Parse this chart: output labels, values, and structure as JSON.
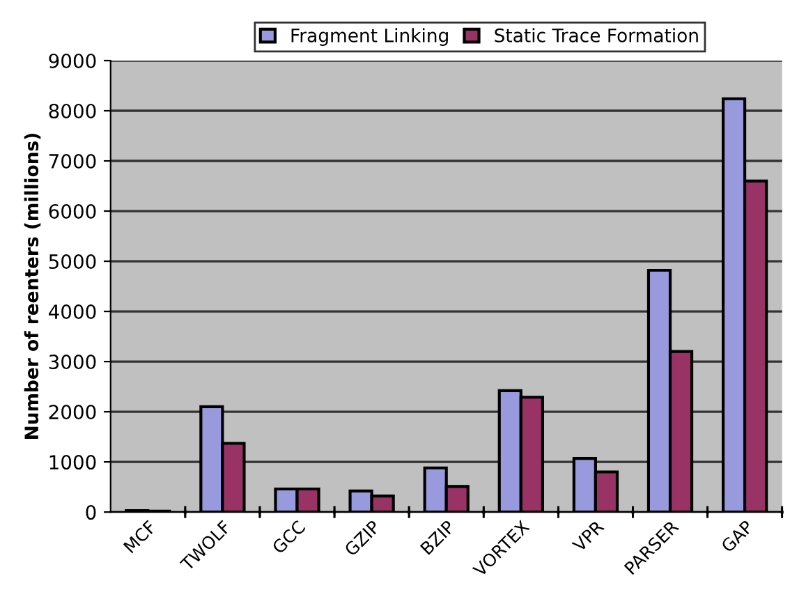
{
  "chart_data": {
    "type": "bar",
    "ylabel": "Number of reenters (millions)",
    "categories": [
      "MCF",
      "TWOLF",
      "GCC",
      "GZIP",
      "BZIP",
      "VORTEX",
      "VPR",
      "PARSER",
      "GAP"
    ],
    "series": [
      {
        "name": "Fragment Linking",
        "color": "#9999dd",
        "values": [
          30,
          2100,
          460,
          420,
          880,
          2420,
          1070,
          4820,
          8240
        ]
      },
      {
        "name": "Static Trace Formation",
        "color": "#993366",
        "values": [
          20,
          1370,
          460,
          320,
          510,
          2290,
          800,
          3200,
          6600
        ]
      }
    ],
    "ylim": [
      0,
      9000
    ],
    "yticks": [
      0,
      1000,
      2000,
      3000,
      4000,
      5000,
      6000,
      7000,
      8000,
      9000
    ],
    "grid": "y",
    "legend": "top"
  }
}
